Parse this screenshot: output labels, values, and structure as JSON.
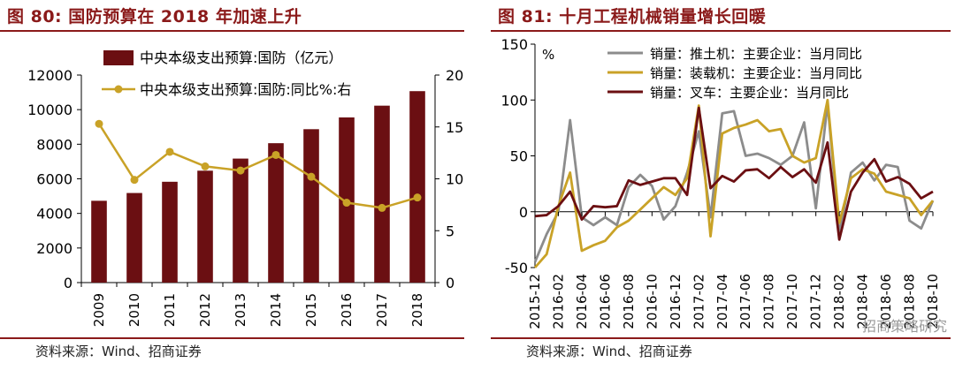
{
  "left": {
    "title": "图 80:  国防预算在 2018 年加速上升",
    "source": "资料来源：Wind、招商证券",
    "colors": {
      "bar": "#6b0f12",
      "line": "#c9a227",
      "title": "#8b1a1a"
    }
  },
  "right": {
    "title": "图 81:  十月工程机械销量增长回暖",
    "source": "资料来源：Wind、招商证券",
    "unit_label": "%",
    "watermark": "招商策略研究",
    "colors": {
      "excavator": "#8c8c8c",
      "loader": "#c9a227",
      "forklift": "#6b0f12"
    }
  },
  "chart_data": [
    {
      "type": "bar",
      "categories": [
        "2009",
        "2010",
        "2011",
        "2012",
        "2013",
        "2014",
        "2015",
        "2016",
        "2017",
        "2018"
      ],
      "series": [
        {
          "name": "中央本级支出预算:国防（亿元）",
          "type": "bar",
          "axis": "left",
          "values": [
            4730,
            5180,
            5830,
            6470,
            7170,
            8060,
            8870,
            9550,
            10230,
            11070
          ]
        },
        {
          "name": "中央本级支出预算:国防:同比%:右",
          "type": "line",
          "axis": "right",
          "values": [
            15.3,
            9.9,
            12.6,
            11.2,
            10.8,
            12.3,
            10.2,
            7.7,
            7.2,
            8.2
          ]
        }
      ],
      "ylim_left": [
        0,
        12000
      ],
      "yticks_left": [
        0,
        2000,
        4000,
        6000,
        8000,
        10000,
        12000
      ],
      "ylim_right": [
        0,
        20
      ],
      "yticks_right": [
        0,
        5,
        10,
        15,
        20
      ],
      "legend": "top-left"
    },
    {
      "type": "line",
      "ylabel": "%",
      "ylim": [
        -50,
        150
      ],
      "yticks": [
        -50,
        0,
        50,
        100,
        150
      ],
      "xlim": [
        "2015-12",
        "2018-10"
      ],
      "xticks": [
        "2015-12",
        "2016-02",
        "2016-04",
        "2016-06",
        "2016-08",
        "2016-10",
        "2016-12",
        "2017-02",
        "2017-04",
        "2017-06",
        "2017-08",
        "2017-10",
        "2017-12",
        "2018-02",
        "2018-04",
        "2018-06",
        "2018-08",
        "2018-10"
      ],
      "grid": "none",
      "legend": "top",
      "series": [
        {
          "name": "销量：推土机：主要企业：当月同比",
          "values": [
            -45,
            -20,
            0,
            82,
            -5,
            -12,
            -5,
            -12,
            22,
            33,
            23,
            -7,
            5,
            35,
            72,
            -5,
            88,
            90,
            50,
            52,
            48,
            42,
            50,
            80,
            3,
            97,
            -20,
            35,
            44,
            28,
            42,
            40,
            -8,
            -15,
            10
          ]
        },
        {
          "name": "销量：装载机：主要企业：当月同比",
          "values": [
            -50,
            -38,
            5,
            35,
            -35,
            -30,
            -26,
            -14,
            -8,
            2,
            12,
            22,
            15,
            30,
            95,
            -22,
            70,
            75,
            78,
            82,
            72,
            74,
            50,
            44,
            48,
            100,
            -10,
            30,
            38,
            34,
            18,
            15,
            12,
            -3,
            10
          ]
        },
        {
          "name": "销量：叉车：主要企业：当月同比",
          "values": [
            -4,
            -3,
            5,
            18,
            -7,
            5,
            4,
            5,
            28,
            24,
            27,
            30,
            30,
            15,
            93,
            21,
            32,
            27,
            37,
            38,
            30,
            40,
            31,
            38,
            26,
            62,
            -25,
            18,
            35,
            47,
            27,
            31,
            25,
            12,
            18
          ]
        }
      ]
    }
  ]
}
